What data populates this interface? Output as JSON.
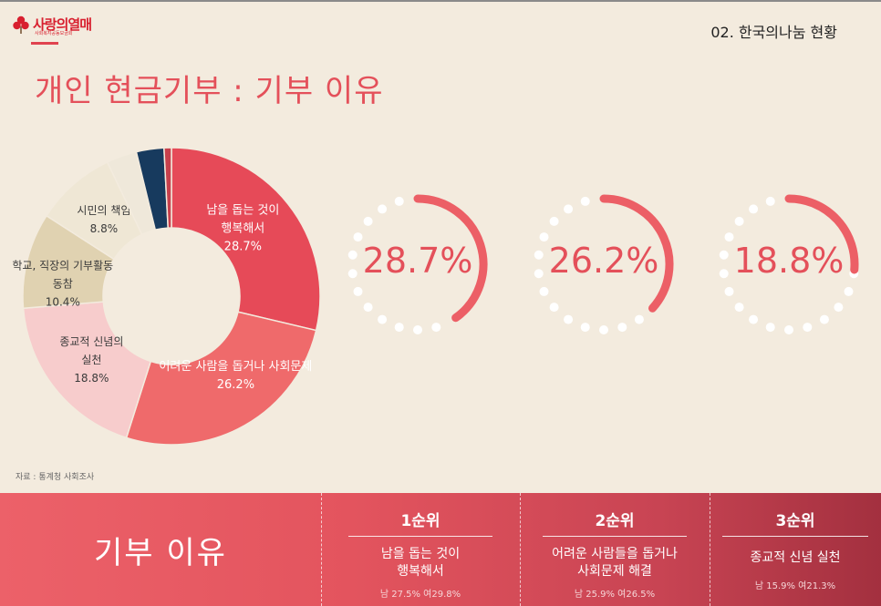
{
  "header": {
    "logo_text": "사랑의열매",
    "logo_sub": "사회복지공동모금회",
    "section": "02. 한국의나눔 현황",
    "title": "개인 현금기부 : 기부 이유"
  },
  "source": "자료 : 통계청 사회조사",
  "colors": {
    "accent": "#e4505a",
    "navy": "#173a5e"
  },
  "chart_data": {
    "type": "pie",
    "title": "개인 현금기부 : 기부 이유",
    "slices": [
      {
        "label": "남을 돕는 것이 행복해서",
        "label_lines": [
          "남을 돕는 것이",
          "행복해서"
        ],
        "value": 28.7,
        "value_text": "28.7%",
        "color": "#e64a58"
      },
      {
        "label": "어려운 사람을 돕거나 사회문제",
        "label_lines": [
          "어려운 사람을 돕거나 사회문제"
        ],
        "value": 26.2,
        "value_text": "26.2%",
        "color": "#ef6a6b"
      },
      {
        "label": "종교적 신념의 실천",
        "label_lines": [
          "종교적 신념의",
          "실천"
        ],
        "value": 18.8,
        "value_text": "18.8%",
        "color": "#f7cccc"
      },
      {
        "label": "학교, 직장의 기부활동 동참",
        "label_lines": [
          "학교, 직장의 기부활동",
          "동참"
        ],
        "value": 10.4,
        "value_text": "10.4%",
        "color": "#e0d2b1"
      },
      {
        "label": "시민의 책임",
        "label_lines": [
          "시민의 책임"
        ],
        "value": 8.8,
        "value_text": "8.8%",
        "color": "#efe7d5"
      },
      {
        "label": "",
        "label_lines": [],
        "value": 3.3,
        "value_text": "",
        "color": "#efe8da"
      },
      {
        "label": "",
        "label_lines": [],
        "value": 3.0,
        "value_text": "",
        "color": "#173a5e"
      },
      {
        "label": "",
        "label_lines": [],
        "value": 0.8,
        "value_text": "",
        "color": "#c7404c"
      }
    ]
  },
  "rings": [
    {
      "value": 28.7,
      "text": "28.7%"
    },
    {
      "value": 26.2,
      "text": "26.2%"
    },
    {
      "value": 18.8,
      "text": "18.8%"
    }
  ],
  "bottom": {
    "label": "기부 이유",
    "ranks": [
      {
        "title": "1순위",
        "desc": [
          "남을 돕는 것이",
          "행복해서"
        ],
        "stat": "남 27.5% 여29.8%"
      },
      {
        "title": "2순위",
        "desc": [
          "어려운 사람들을 돕거나",
          "사회문제 해결"
        ],
        "stat": "남 25.9% 여26.5%"
      },
      {
        "title": "3순위",
        "desc": [
          "종교적 신념 실천"
        ],
        "stat": "남 15.9% 여21.3%"
      }
    ]
  }
}
